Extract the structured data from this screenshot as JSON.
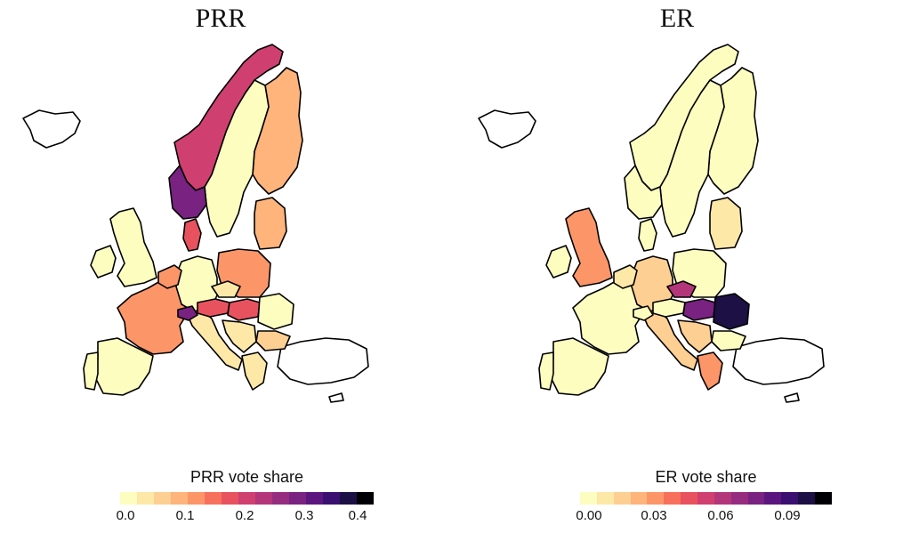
{
  "maps": [
    {
      "title": "PRR",
      "legend_title": "PRR vote share",
      "ticks": [
        "0.0",
        "0.1",
        "0.2",
        "0.3",
        "0.4"
      ],
      "scale_min": 0,
      "scale_max": 0.43,
      "regions": {
        "iceland": null,
        "norway": 0.22,
        "norway_south": 0.3,
        "sweden": 0.02,
        "finland": 0.1,
        "uk": 0.01,
        "ireland": 0.01,
        "france": 0.13,
        "spain": 0.01,
        "portugal": 0.01,
        "germany": 0.02,
        "poland": 0.12,
        "italy": 0.05,
        "benelux": 0.14,
        "switzerland": 0.3,
        "austria": 0.2,
        "czechia": 0.03,
        "hungary": 0.18,
        "romania": 0.01,
        "bulgaria": 0.08,
        "greece": 0.05,
        "baltics": 0.09,
        "denmark": 0.2,
        "balkans": 0.03,
        "turkey": null,
        "cyprus": null
      }
    },
    {
      "title": "ER",
      "legend_title": "ER vote share",
      "ticks": [
        "0.00",
        "0.03",
        "0.06",
        "0.09"
      ],
      "scale_min": 0,
      "scale_max": 0.11,
      "regions": {
        "iceland": null,
        "norway": 0.0,
        "norway_south": 0.0,
        "sweden": 0.0,
        "finland": 0.0,
        "uk": 0.03,
        "ireland": 0.0,
        "france": 0.0,
        "spain": 0.0,
        "portugal": 0.0,
        "germany": 0.02,
        "poland": 0.0,
        "italy": 0.015,
        "benelux": 0.01,
        "switzerland": 0.0,
        "austria": 0.0,
        "czechia": 0.06,
        "hungary": 0.08,
        "romania": 0.1,
        "bulgaria": 0.0,
        "greece": 0.035,
        "baltics": 0.01,
        "denmark": 0.0,
        "balkans": 0.02,
        "turkey": null,
        "cyprus": null
      }
    }
  ],
  "colormap": [
    "#fcfdbf",
    "#fde8a8",
    "#fecf92",
    "#feb47b",
    "#fc9669",
    "#f7705c",
    "#e8525f",
    "#cf4070",
    "#b3367a",
    "#962c80",
    "#792282",
    "#5a167e",
    "#3b0f70",
    "#1c1044",
    "#000004"
  ]
}
